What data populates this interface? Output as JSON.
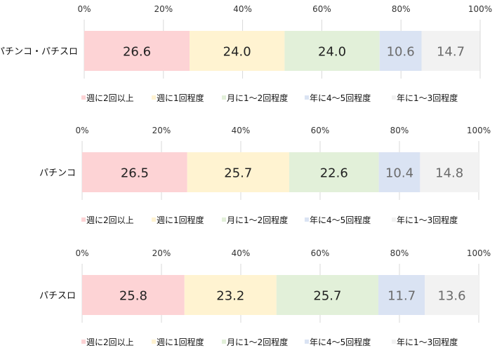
{
  "colors": [
    "#fdd3d5",
    "#fff3d1",
    "#e2f0d9",
    "#dae3f3",
    "#f2f2f2"
  ],
  "value_text_colors": [
    "#222222",
    "#222222",
    "#222222",
    "#6b6b6b",
    "#6b6b6b"
  ],
  "chart_data": [
    {
      "type": "bar",
      "orientation": "horizontal",
      "stacked": "percent",
      "categories": [
        "パチンコ・パチスロ"
      ],
      "xlim": [
        0,
        100
      ],
      "x_ticks": [
        "0%",
        "20%",
        "40%",
        "60%",
        "80%",
        "100%"
      ],
      "grid": true,
      "legend_position": "bottom",
      "series": [
        {
          "name": "週に2回以上",
          "values": [
            26.6
          ],
          "labels": [
            "26.6"
          ]
        },
        {
          "name": "週に1回程度",
          "values": [
            24.0
          ],
          "labels": [
            "24.0"
          ]
        },
        {
          "name": "月に1～2回程度",
          "values": [
            24.0
          ],
          "labels": [
            "24.0"
          ]
        },
        {
          "name": "年に4～5回程度",
          "values": [
            10.6
          ],
          "labels": [
            "10.6"
          ]
        },
        {
          "name": "年に1～3回程度",
          "values": [
            14.7
          ],
          "labels": [
            "14.7"
          ]
        }
      ]
    },
    {
      "type": "bar",
      "orientation": "horizontal",
      "stacked": "percent",
      "categories": [
        "パチンコ"
      ],
      "xlim": [
        0,
        100
      ],
      "x_ticks": [
        "0%",
        "20%",
        "40%",
        "60%",
        "80%",
        "100%"
      ],
      "grid": true,
      "legend_position": "bottom",
      "series": [
        {
          "name": "週に2回以上",
          "values": [
            26.5
          ],
          "labels": [
            "26.5"
          ]
        },
        {
          "name": "週に1回程度",
          "values": [
            25.7
          ],
          "labels": [
            "25.7"
          ]
        },
        {
          "name": "月に1～2回程度",
          "values": [
            22.6
          ],
          "labels": [
            "22.6"
          ]
        },
        {
          "name": "年に4～5回程度",
          "values": [
            10.4
          ],
          "labels": [
            "10.4"
          ]
        },
        {
          "name": "年に1～3回程度",
          "values": [
            14.8
          ],
          "labels": [
            "14.8"
          ]
        }
      ]
    },
    {
      "type": "bar",
      "orientation": "horizontal",
      "stacked": "percent",
      "categories": [
        "パチスロ"
      ],
      "xlim": [
        0,
        100
      ],
      "x_ticks": [
        "0%",
        "20%",
        "40%",
        "60%",
        "80%",
        "100%"
      ],
      "grid": true,
      "legend_position": "bottom",
      "series": [
        {
          "name": "週に2回以上",
          "values": [
            25.8
          ],
          "labels": [
            "25.8"
          ]
        },
        {
          "name": "週に1回程度",
          "values": [
            23.2
          ],
          "labels": [
            "23.2"
          ]
        },
        {
          "name": "月に1～2回程度",
          "values": [
            25.7
          ],
          "labels": [
            "25.7"
          ]
        },
        {
          "name": "年に4～5回程度",
          "values": [
            11.7
          ],
          "labels": [
            "11.7"
          ]
        },
        {
          "name": "年に1～3回程度",
          "values": [
            13.6
          ],
          "labels": [
            "13.6"
          ]
        }
      ]
    }
  ]
}
